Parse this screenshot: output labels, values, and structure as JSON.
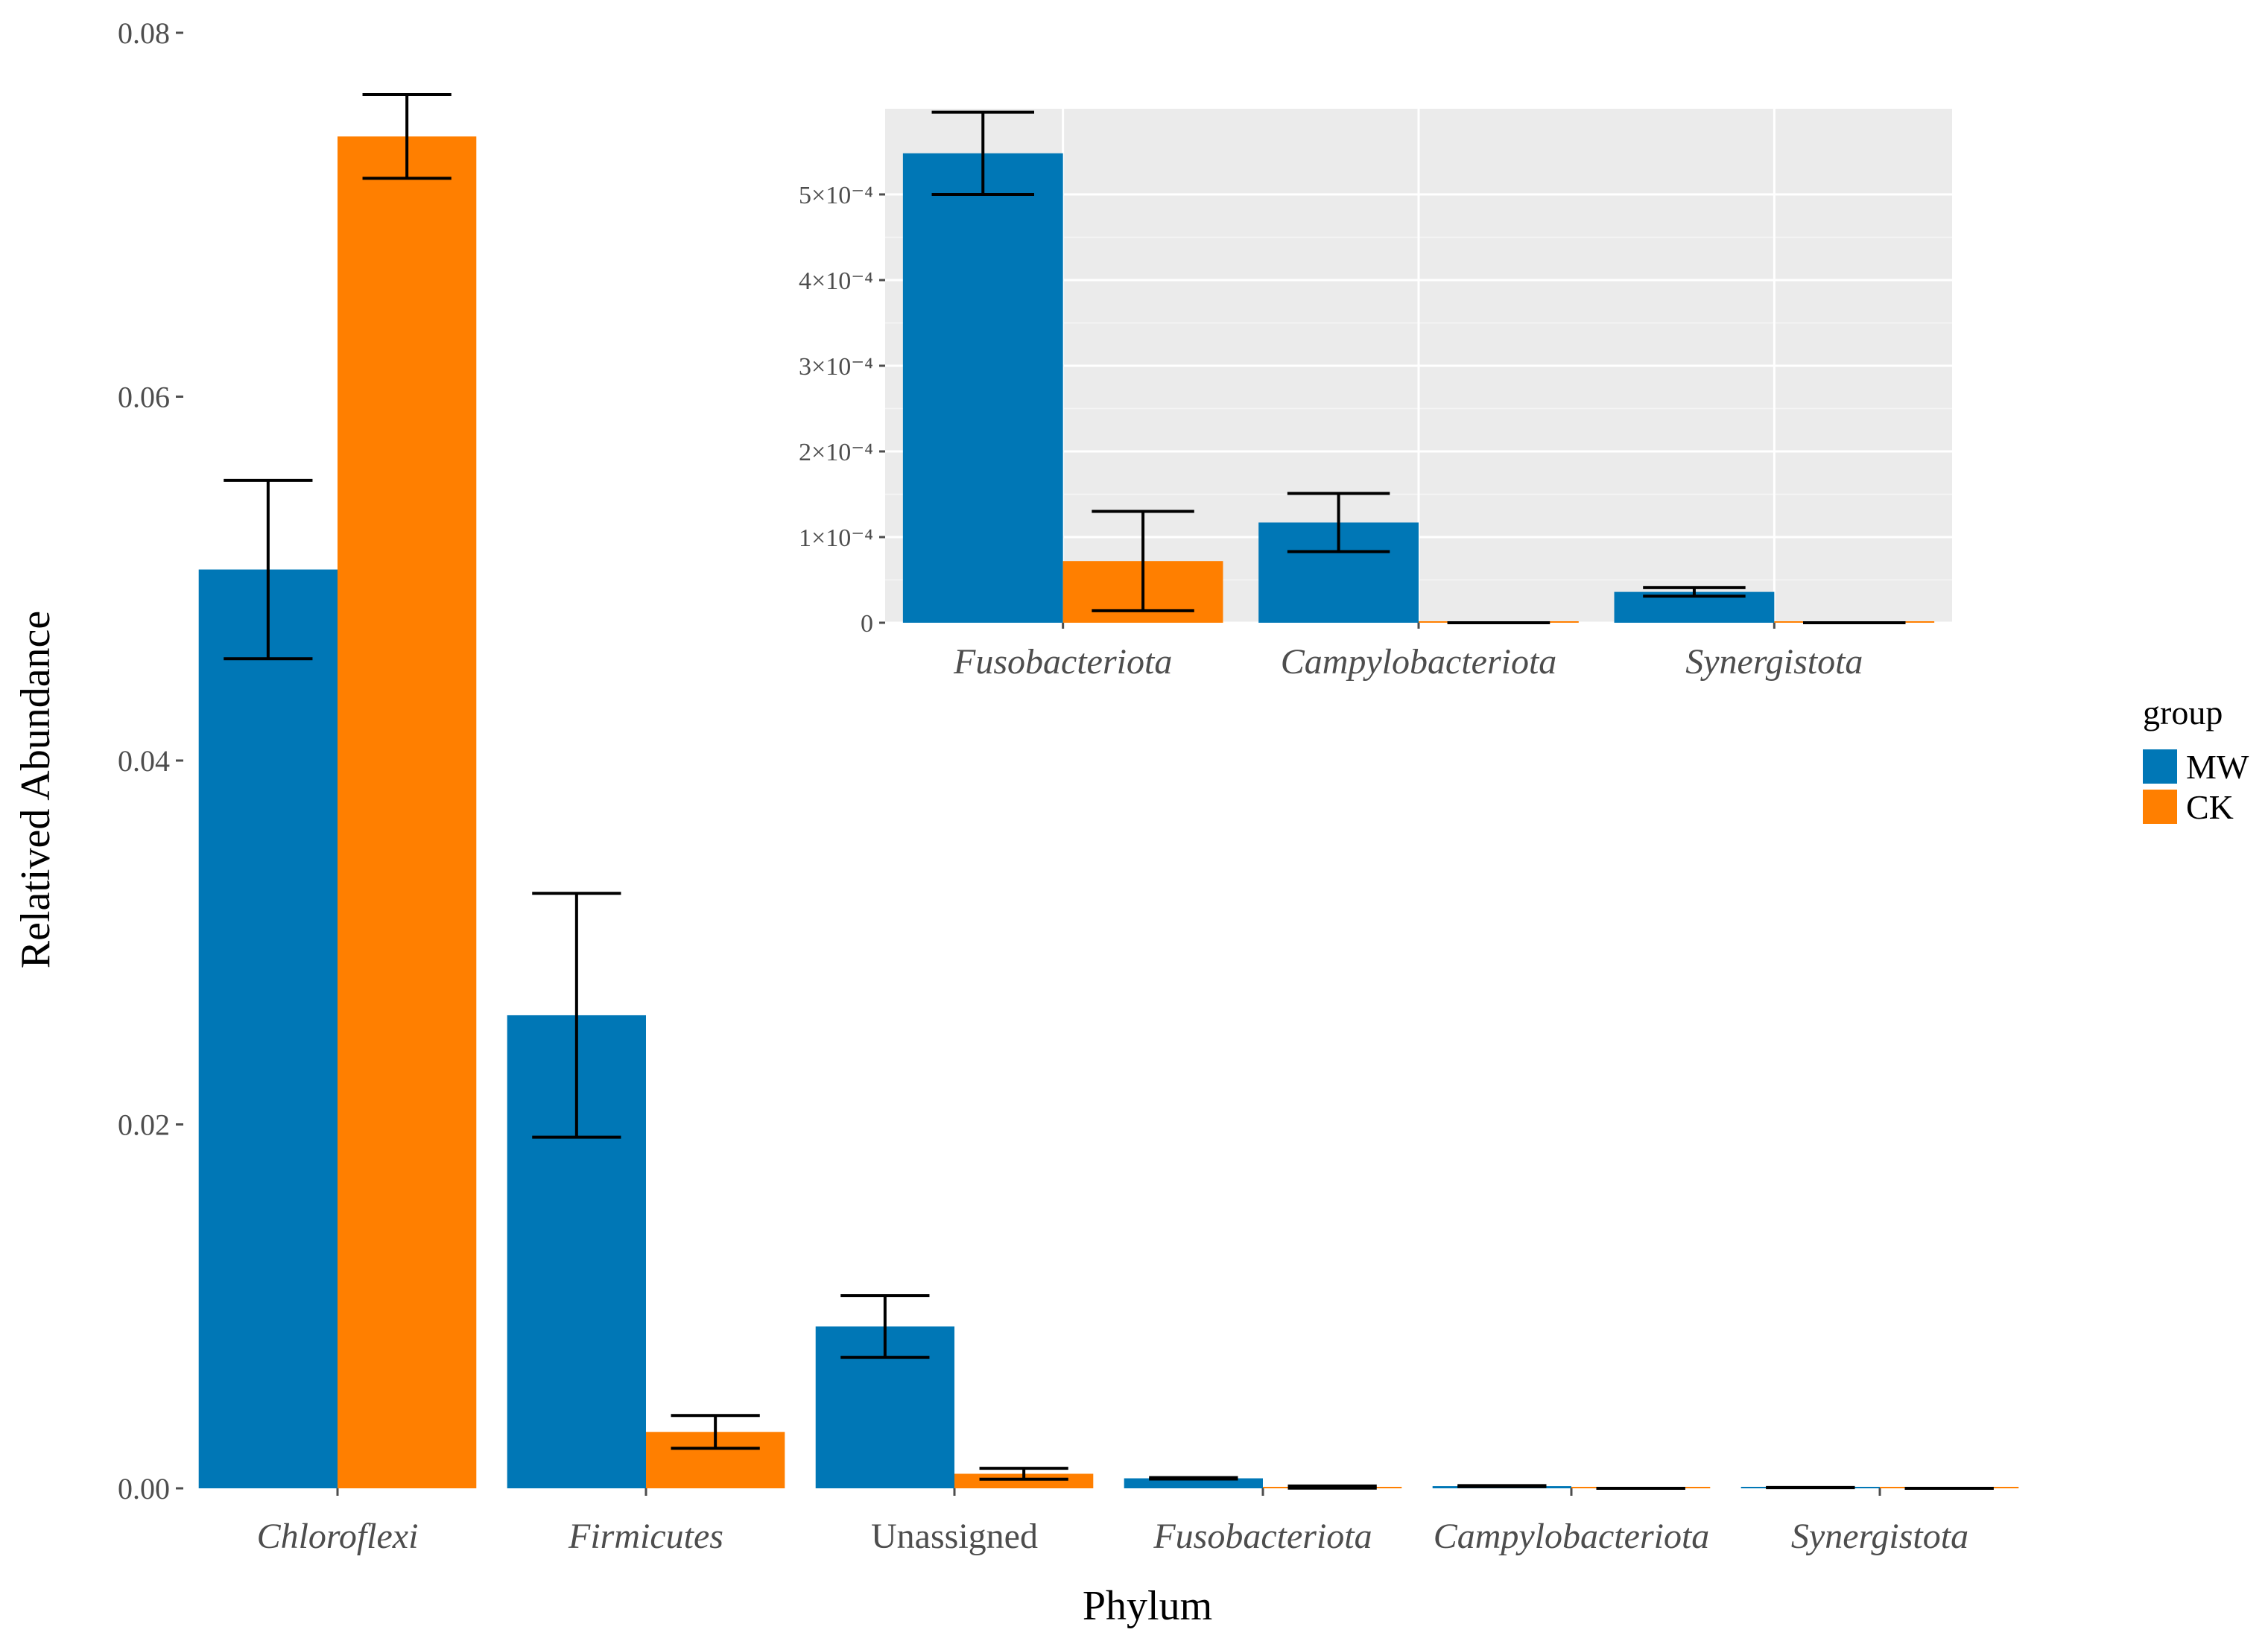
{
  "chart_data": [
    {
      "type": "bar",
      "title": "",
      "xlabel": "Phylum",
      "ylabel": "Relatived Abundance",
      "categories": [
        "Chloroflexi",
        "Firmicutes",
        "Unassigned",
        "Fusobacteriota",
        "Campylobacteriota",
        "Synergistota"
      ],
      "italic_categories": [
        true,
        true,
        false,
        true,
        true,
        true
      ],
      "ylim": [
        0,
        0.08
      ],
      "yticks": [
        0,
        0.02,
        0.04,
        0.06,
        0.08
      ],
      "ytick_labels": [
        "0.00",
        "0.02",
        "0.04",
        "0.06",
        "0.08"
      ],
      "grid": false,
      "series": [
        {
          "name": "MW",
          "color": "#0077b6",
          "values": [
            0.0505,
            0.026,
            0.0089,
            0.00055,
            0.00012,
            4e-05
          ],
          "err": [
            0.0049,
            0.0067,
            0.0017,
            4e-05,
            3e-05,
            5e-06
          ]
        },
        {
          "name": "CK",
          "color": "#ff7f00",
          "values": [
            0.0743,
            0.0031,
            0.0008,
            7e-05,
            0.0,
            0.0
          ],
          "err": [
            0.0023,
            0.0009,
            0.0003,
            6e-05,
            0.0,
            0.0
          ]
        }
      ]
    },
    {
      "type": "bar",
      "title": "",
      "inset": true,
      "xlabel": "",
      "ylabel": "",
      "categories": [
        "Fusobacteriota",
        "Campylobacteriota",
        "Synergistota"
      ],
      "ylim": [
        0,
        0.0006
      ],
      "yticks": [
        0,
        0.0001,
        0.0002,
        0.0003,
        0.0004,
        0.0005
      ],
      "ytick_labels": [
        "0",
        "1×10⁻⁴",
        "2×10⁻⁴",
        "3×10⁻⁴",
        "4×10⁻⁴",
        "5×10⁻⁴"
      ],
      "grid": true,
      "series": [
        {
          "name": "MW",
          "color": "#0077b6",
          "values": [
            0.000548,
            0.000117,
            3.6e-05
          ],
          "err": [
            4.8e-05,
            3.4e-05,
            5e-06
          ]
        },
        {
          "name": "CK",
          "color": "#ff7f00",
          "values": [
            7.2e-05,
            0.0,
            0.0
          ],
          "err": [
            5.8e-05,
            0.0,
            0.0
          ]
        }
      ]
    }
  ],
  "legend": {
    "title": "group",
    "entries": [
      {
        "label": "MW",
        "color": "#0077b6"
      },
      {
        "label": "CK",
        "color": "#ff7f00"
      }
    ]
  }
}
